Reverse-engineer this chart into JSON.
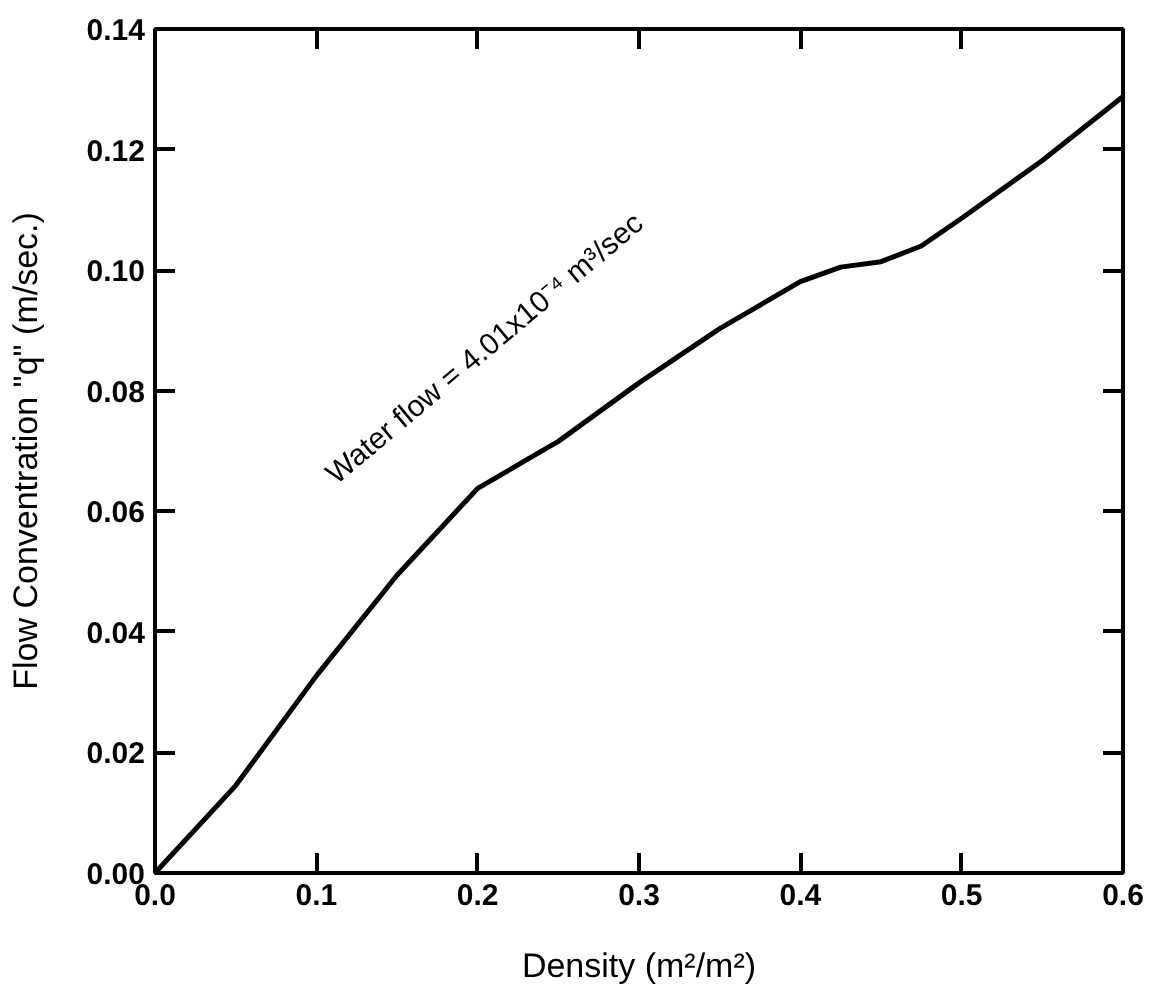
{
  "chart_data": {
    "type": "line",
    "xlabel": "Density (m²/m²)",
    "ylabel": "Flow Conventration \"q\" (m/sec.)",
    "x": [
      0,
      0.05,
      0.1,
      0.15,
      0.2,
      0.25,
      0.3,
      0.35,
      0.4,
      0.425,
      0.45,
      0.475,
      0.5,
      0.55,
      0.6
    ],
    "series": [
      {
        "color": "#000000",
        "values": [
          0,
          0.0145,
          0.0327,
          0.0494,
          0.0638,
          0.0716,
          0.0813,
          0.0903,
          0.0981,
          0.1005,
          0.1014,
          0.104,
          0.1086,
          0.1182,
          0.1288
        ]
      }
    ],
    "xlim": [
      0,
      0.6
    ],
    "ylim": [
      0,
      0.14
    ],
    "xticks": [
      {
        "value": 0,
        "label": "0.0"
      },
      0.1,
      0.2,
      0.3,
      0.4,
      0.5,
      0.6
    ],
    "yticks": [
      {
        "value": 0,
        "label": "0.00"
      },
      0.02,
      0.04,
      0.06,
      0.08,
      {
        "value": 0.1,
        "label": "0.10"
      },
      0.12,
      0.14
    ],
    "annotations": [
      "Water flow = 4.01x10⁻⁴ m³/sec"
    ],
    "grid": false,
    "marker": "none",
    "line_style": "solid"
  }
}
